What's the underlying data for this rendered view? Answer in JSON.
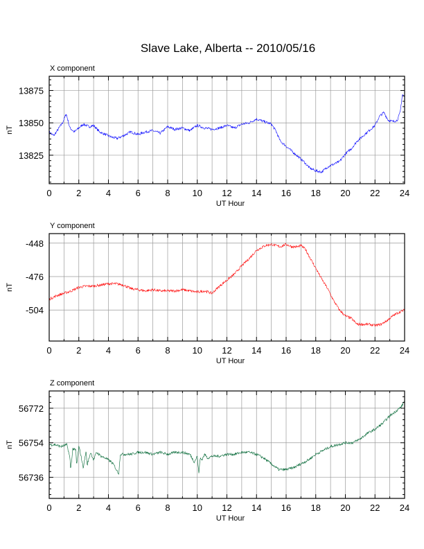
{
  "title": "Slave Lake, Alberta -- 2010/05/16",
  "chart_data": [
    {
      "type": "line",
      "panel_title": "X component",
      "xlabel": "UT Hour",
      "ylabel": "nT",
      "xlim": [
        0,
        24
      ],
      "ylim": [
        13803,
        13886
      ],
      "xticks": [
        0,
        2,
        4,
        6,
        8,
        10,
        12,
        14,
        16,
        18,
        20,
        22,
        24
      ],
      "yticks": [
        13825,
        13850,
        13875
      ],
      "grid": true,
      "color": "#0000ff",
      "x": [
        0,
        0.3,
        0.6,
        0.9,
        1.15,
        1.4,
        1.7,
        2.0,
        2.3,
        2.7,
        3.0,
        3.4,
        3.8,
        4.2,
        4.6,
        5.0,
        5.5,
        6.0,
        6.5,
        7.0,
        7.5,
        8.0,
        8.5,
        9.0,
        9.5,
        10.0,
        10.5,
        11.0,
        11.5,
        12.0,
        12.5,
        13.0,
        13.5,
        14.0,
        14.5,
        15.0,
        15.3,
        15.6,
        16.0,
        16.4,
        16.8,
        17.2,
        17.6,
        18.0,
        18.4,
        18.8,
        19.2,
        19.6,
        20.0,
        20.4,
        20.8,
        21.2,
        21.6,
        22.0,
        22.3,
        22.6,
        22.9,
        23.2,
        23.5,
        23.7,
        23.85,
        24.0
      ],
      "y": [
        13843,
        13840,
        13845,
        13850,
        13857,
        13846,
        13843,
        13846,
        13849,
        13847,
        13848,
        13843,
        13841,
        13839,
        13838,
        13840,
        13843,
        13841,
        13843,
        13844,
        13842,
        13847,
        13845,
        13846,
        13844,
        13848,
        13846,
        13845,
        13846,
        13848,
        13846,
        13849,
        13850,
        13853,
        13851,
        13849,
        13844,
        13836,
        13832,
        13828,
        13824,
        13820,
        13815,
        13813,
        13812,
        13816,
        13818,
        13820,
        13826,
        13830,
        13836,
        13840,
        13844,
        13848,
        13855,
        13858,
        13852,
        13851,
        13852,
        13858,
        13872,
        13870
      ]
    },
    {
      "type": "line",
      "panel_title": "Y component",
      "xlabel": "UT Hour",
      "ylabel": "nT",
      "xlim": [
        0,
        24
      ],
      "ylim": [
        -530,
        -440
      ],
      "xticks": [
        0,
        2,
        4,
        6,
        8,
        10,
        12,
        14,
        16,
        18,
        20,
        22,
        24
      ],
      "yticks": [
        -448,
        -476,
        -504
      ],
      "grid": true,
      "color": "#ff0000",
      "x": [
        0,
        0.5,
        1.0,
        1.5,
        2.0,
        2.5,
        3.0,
        3.5,
        4.0,
        4.5,
        5.0,
        5.5,
        6.0,
        6.5,
        7.0,
        7.5,
        8.0,
        8.5,
        9.0,
        9.5,
        10.0,
        10.5,
        11.0,
        11.5,
        12.0,
        12.5,
        13.0,
        13.5,
        14.0,
        14.3,
        14.6,
        15.0,
        15.3,
        15.6,
        16.0,
        16.4,
        16.8,
        17.0,
        17.3,
        17.6,
        18.0,
        18.4,
        18.8,
        19.2,
        19.6,
        20.0,
        20.4,
        20.8,
        21.2,
        21.6,
        22.0,
        22.4,
        22.8,
        23.2,
        23.6,
        24.0
      ],
      "y": [
        -495,
        -492,
        -490,
        -488,
        -485,
        -484,
        -484,
        -483,
        -482,
        -482,
        -483,
        -486,
        -487,
        -488,
        -487,
        -488,
        -488,
        -488,
        -487,
        -488,
        -489,
        -488,
        -490,
        -484,
        -479,
        -474,
        -467,
        -461,
        -454,
        -452,
        -450,
        -449,
        -450,
        -451,
        -449,
        -451,
        -451,
        -450,
        -453,
        -460,
        -469,
        -478,
        -486,
        -496,
        -504,
        -509,
        -511,
        -516,
        -516,
        -516,
        -517,
        -516,
        -513,
        -509,
        -506,
        -504
      ]
    },
    {
      "type": "line",
      "panel_title": "Z component",
      "xlabel": "UT Hour",
      "ylabel": "nT",
      "xlim": [
        0,
        24
      ],
      "ylim": [
        56725,
        56781
      ],
      "xticks": [
        0,
        2,
        4,
        6,
        8,
        10,
        12,
        14,
        16,
        18,
        20,
        22,
        24
      ],
      "yticks": [
        56736,
        56754,
        56772
      ],
      "grid": true,
      "color": "#006633",
      "x": [
        0,
        0.4,
        0.8,
        1.2,
        1.4,
        1.45,
        1.6,
        1.8,
        1.85,
        2.0,
        2.1,
        2.3,
        2.5,
        2.55,
        2.8,
        3.0,
        3.2,
        3.5,
        3.8,
        4.0,
        4.2,
        4.4,
        4.6,
        4.7,
        4.8,
        5.0,
        5.5,
        6.0,
        6.5,
        7.0,
        7.5,
        8.0,
        8.5,
        9.0,
        9.5,
        9.8,
        10.0,
        10.1,
        10.2,
        10.3,
        10.5,
        10.7,
        11.0,
        11.5,
        12.0,
        12.5,
        13.0,
        13.5,
        14.0,
        14.5,
        15.0,
        15.5,
        15.8,
        16.0,
        16.5,
        17.0,
        17.5,
        18.0,
        18.5,
        19.0,
        19.5,
        20.0,
        20.5,
        21.0,
        21.5,
        22.0,
        22.5,
        23.0,
        23.5,
        23.8,
        24.0
      ],
      "y": [
        56753,
        56753,
        56752,
        56753,
        56746,
        56740,
        56751,
        56750,
        56742,
        56752,
        56749,
        56741,
        56750,
        56742,
        56749,
        56745,
        56749,
        56747,
        56746,
        56745,
        56744,
        56742,
        56739,
        56738,
        56748,
        56748,
        56748,
        56749,
        56749,
        56748,
        56749,
        56748,
        56749,
        56749,
        56748,
        56744,
        56747,
        56738,
        56746,
        56745,
        56748,
        56746,
        56747,
        56747,
        56748,
        56748,
        56749,
        56749,
        56748,
        56746,
        56743,
        56740,
        56740,
        56740,
        56741,
        56743,
        56745,
        56748,
        56750,
        56752,
        56753,
        56754,
        56754,
        56756,
        56759,
        56761,
        56764,
        56768,
        56771,
        56773,
        56776
      ]
    }
  ]
}
